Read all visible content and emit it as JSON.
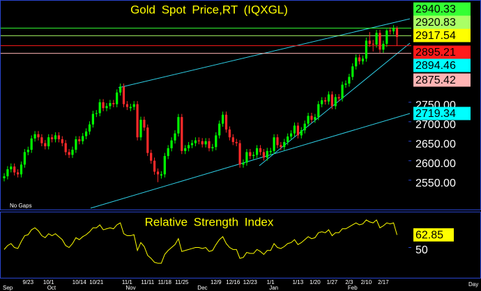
{
  "chart_data": [
    {
      "type": "candlestick",
      "title": "Gold Spot Price,RT (IQXGL)",
      "note": "No Gaps",
      "x_unit": "Day",
      "up_color": "#00ff00",
      "down_color": "#ff2a2a",
      "ylim": [
        2480,
        3007
      ],
      "yticks": [
        {
          "value": 2550,
          "label": "2550.00"
        },
        {
          "value": 2600,
          "label": "2600.00"
        },
        {
          "value": 2650,
          "label": "2650.00"
        },
        {
          "value": 2700,
          "label": "2700.00"
        },
        {
          "value": 2750,
          "label": "2750.00"
        }
      ],
      "price_tags": [
        {
          "value": 2940.33,
          "color": "#33ff33",
          "line": true
        },
        {
          "value": 2920.83,
          "color": "#aaff66",
          "line": true
        },
        {
          "value": 2917.54,
          "color": "#ffff00",
          "line": false
        },
        {
          "value": 2895.21,
          "color": "#ff1a1a",
          "line": true
        },
        {
          "value": 2894.46,
          "color": "#00ffff",
          "line": false
        },
        {
          "value": 2875.42,
          "color": "#ffb4b4",
          "line": true
        },
        {
          "value": 2719.34,
          "color": "#00ffff",
          "line": false
        }
      ],
      "xticks": [
        "9/23",
        "10/1",
        "10/14",
        "10/21",
        "11/1",
        "11/11",
        "11/18",
        "11/25",
        "12/9",
        "12/16",
        "12/23",
        "1/1",
        "1/13",
        "1/20",
        "1/27",
        "2/3",
        "2/10",
        "2/17"
      ],
      "month_labels": [
        {
          "date": "9/12",
          "label": "Sep"
        },
        {
          "date": "10/1",
          "label": "Oct"
        },
        {
          "date": "11/1",
          "label": "Nov"
        },
        {
          "date": "12/2",
          "label": "Dec"
        },
        {
          "date": "1/1",
          "label": "Jan"
        },
        {
          "date": "2/3",
          "label": "Feb"
        }
      ],
      "dates": [
        "9/12",
        "9/13",
        "9/16",
        "9/17",
        "9/18",
        "9/19",
        "9/20",
        "9/23",
        "9/24",
        "9/25",
        "9/26",
        "9/27",
        "9/30",
        "10/1",
        "10/2",
        "10/3",
        "10/4",
        "10/7",
        "10/8",
        "10/9",
        "10/10",
        "10/11",
        "10/14",
        "10/15",
        "10/16",
        "10/17",
        "10/18",
        "10/21",
        "10/22",
        "10/23",
        "10/24",
        "10/25",
        "10/28",
        "10/29",
        "10/30",
        "10/31",
        "11/1",
        "11/4",
        "11/5",
        "11/6",
        "11/7",
        "11/8",
        "11/11",
        "11/12",
        "11/13",
        "11/14",
        "11/15",
        "11/18",
        "11/19",
        "11/20",
        "11/21",
        "11/22",
        "11/25",
        "11/26",
        "11/27",
        "11/28",
        "11/29",
        "12/2",
        "12/3",
        "12/4",
        "12/5",
        "12/6",
        "12/9",
        "12/10",
        "12/11",
        "12/12",
        "12/13",
        "12/16",
        "12/17",
        "12/18",
        "12/19",
        "12/20",
        "12/23",
        "12/24",
        "12/26",
        "12/27",
        "12/30",
        "12/31",
        "1/1",
        "1/2",
        "1/3",
        "1/6",
        "1/7",
        "1/8",
        "1/9",
        "1/10",
        "1/13",
        "1/14",
        "1/15",
        "1/16",
        "1/17",
        "1/20",
        "1/21",
        "1/22",
        "1/23",
        "1/24",
        "1/27",
        "1/28",
        "1/29",
        "1/30",
        "1/31",
        "2/3",
        "2/4",
        "2/5",
        "2/6",
        "2/7",
        "2/10",
        "2/11",
        "2/12",
        "2/13",
        "2/14",
        "2/17",
        "2/18",
        "2/19",
        "2/20",
        "2/21"
      ],
      "candles": [
        [
          2555,
          2568,
          2547,
          2560
        ],
        [
          2560,
          2586,
          2552,
          2578
        ],
        [
          2578,
          2593,
          2570,
          2585
        ],
        [
          2585,
          2593,
          2562,
          2570
        ],
        [
          2570,
          2578,
          2557,
          2565
        ],
        [
          2565,
          2598,
          2557,
          2590
        ],
        [
          2590,
          2630,
          2582,
          2622
        ],
        [
          2622,
          2636,
          2614,
          2628
        ],
        [
          2628,
          2665,
          2620,
          2657
        ],
        [
          2657,
          2676,
          2649,
          2668
        ],
        [
          2668,
          2676,
          2652,
          2660
        ],
        [
          2660,
          2668,
          2637,
          2645
        ],
        [
          2645,
          2653,
          2629,
          2637
        ],
        [
          2637,
          2668,
          2629,
          2660
        ],
        [
          2660,
          2668,
          2647,
          2655
        ],
        [
          2655,
          2673,
          2647,
          2665
        ],
        [
          2665,
          2673,
          2647,
          2655
        ],
        [
          2655,
          2663,
          2637,
          2645
        ],
        [
          2645,
          2653,
          2614,
          2622
        ],
        [
          2622,
          2630,
          2607,
          2615
        ],
        [
          2615,
          2636,
          2607,
          2628
        ],
        [
          2628,
          2663,
          2620,
          2655
        ],
        [
          2655,
          2663,
          2642,
          2650
        ],
        [
          2650,
          2671,
          2642,
          2663
        ],
        [
          2663,
          2683,
          2655,
          2675
        ],
        [
          2675,
          2701,
          2667,
          2693
        ],
        [
          2693,
          2728,
          2685,
          2720
        ],
        [
          2720,
          2730,
          2712,
          2722
        ],
        [
          2722,
          2758,
          2714,
          2750
        ],
        [
          2750,
          2758,
          2727,
          2735
        ],
        [
          2735,
          2748,
          2727,
          2740
        ],
        [
          2740,
          2756,
          2732,
          2748
        ],
        [
          2748,
          2756,
          2737,
          2745
        ],
        [
          2745,
          2783,
          2737,
          2775
        ],
        [
          2775,
          2798,
          2767,
          2790
        ],
        [
          2790,
          2798,
          2737,
          2745
        ],
        [
          2745,
          2753,
          2730,
          2738
        ],
        [
          2735,
          2746,
          2727,
          2738
        ],
        [
          2738,
          2753,
          2730,
          2745
        ],
        [
          2745,
          2753,
          2652,
          2660
        ],
        [
          2660,
          2713,
          2652,
          2705
        ],
        [
          2705,
          2713,
          2677,
          2685
        ],
        [
          2685,
          2693,
          2612,
          2620
        ],
        [
          2620,
          2628,
          2592,
          2600
        ],
        [
          2600,
          2608,
          2564,
          2572
        ],
        [
          2572,
          2580,
          2545,
          2565
        ],
        [
          2562,
          2573,
          2554,
          2565
        ],
        [
          2565,
          2620,
          2557,
          2612
        ],
        [
          2612,
          2640,
          2604,
          2632
        ],
        [
          2632,
          2660,
          2624,
          2652
        ],
        [
          2652,
          2678,
          2644,
          2670
        ],
        [
          2670,
          2720,
          2662,
          2712
        ],
        [
          2712,
          2720,
          2617,
          2625
        ],
        [
          2625,
          2640,
          2617,
          2632
        ],
        [
          2632,
          2648,
          2624,
          2640
        ],
        [
          2640,
          2653,
          2632,
          2645
        ],
        [
          2645,
          2660,
          2637,
          2652
        ],
        [
          2652,
          2660,
          2642,
          2650
        ],
        [
          2650,
          2658,
          2634,
          2642
        ],
        [
          2642,
          2658,
          2634,
          2650
        ],
        [
          2650,
          2658,
          2624,
          2632
        ],
        [
          2632,
          2643,
          2624,
          2635
        ],
        [
          2635,
          2673,
          2627,
          2665
        ],
        [
          2665,
          2703,
          2657,
          2695
        ],
        [
          2695,
          2726,
          2687,
          2718
        ],
        [
          2718,
          2726,
          2672,
          2680
        ],
        [
          2680,
          2688,
          2652,
          2660
        ],
        [
          2660,
          2668,
          2640,
          2648
        ],
        [
          2648,
          2656,
          2637,
          2645
        ],
        [
          2645,
          2653,
          2582,
          2590
        ],
        [
          2590,
          2603,
          2582,
          2595
        ],
        [
          2595,
          2630,
          2587,
          2622
        ],
        [
          2622,
          2630,
          2604,
          2612
        ],
        [
          2612,
          2623,
          2604,
          2615
        ],
        [
          2615,
          2640,
          2607,
          2632
        ],
        [
          2632,
          2640,
          2614,
          2622
        ],
        [
          2622,
          2630,
          2600,
          2608
        ],
        [
          2608,
          2633,
          2600,
          2625
        ],
        [
          2622,
          2633,
          2614,
          2625
        ],
        [
          2625,
          2668,
          2617,
          2660
        ],
        [
          2660,
          2668,
          2632,
          2640
        ],
        [
          2640,
          2648,
          2627,
          2635
        ],
        [
          2635,
          2656,
          2627,
          2648
        ],
        [
          2648,
          2670,
          2640,
          2662
        ],
        [
          2662,
          2678,
          2654,
          2670
        ],
        [
          2670,
          2698,
          2662,
          2690
        ],
        [
          2690,
          2698,
          2657,
          2665
        ],
        [
          2665,
          2686,
          2657,
          2678
        ],
        [
          2678,
          2703,
          2670,
          2695
        ],
        [
          2695,
          2723,
          2687,
          2715
        ],
        [
          2715,
          2723,
          2697,
          2705
        ],
        [
          2705,
          2720,
          2697,
          2712
        ],
        [
          2712,
          2753,
          2704,
          2745
        ],
        [
          2745,
          2763,
          2737,
          2755
        ],
        [
          2755,
          2763,
          2744,
          2752
        ],
        [
          2752,
          2778,
          2744,
          2770
        ],
        [
          2770,
          2778,
          2732,
          2740
        ],
        [
          2740,
          2771,
          2732,
          2763
        ],
        [
          2763,
          2771,
          2752,
          2760
        ],
        [
          2760,
          2803,
          2752,
          2795
        ],
        [
          2795,
          2806,
          2787,
          2798
        ],
        [
          2798,
          2823,
          2790,
          2815
        ],
        [
          2815,
          2850,
          2807,
          2842
        ],
        [
          2842,
          2873,
          2834,
          2865
        ],
        [
          2865,
          2873,
          2847,
          2855
        ],
        [
          2855,
          2870,
          2847,
          2862
        ],
        [
          2862,
          2916,
          2854,
          2908
        ],
        [
          2908,
          2930,
          2892,
          2900
        ],
        [
          2900,
          2910,
          2880,
          2898
        ],
        [
          2898,
          2936,
          2890,
          2928
        ],
        [
          2928,
          2936,
          2877,
          2885
        ],
        [
          2885,
          2908,
          2877,
          2900
        ],
        [
          2900,
          2938,
          2892,
          2934
        ],
        [
          2934,
          2942,
          2924,
          2932
        ],
        [
          2932,
          2948,
          2924,
          2940
        ],
        [
          2940,
          2945,
          2895.21,
          2917.54
        ]
      ]
    },
    {
      "type": "line",
      "title": "Relative Strength Index",
      "color": "#ffff00",
      "ylim": [
        20,
        85
      ],
      "yticks": [
        50
      ],
      "last_tag": {
        "value": 62.85,
        "color": "#ffff00"
      },
      "values": [
        48,
        52,
        54,
        50,
        49,
        56,
        62,
        63,
        68,
        70,
        67,
        62,
        60,
        64,
        62,
        64,
        61,
        58,
        52,
        50,
        54,
        60,
        58,
        61,
        63,
        66,
        70,
        70,
        73,
        68,
        69,
        70,
        69,
        73,
        75,
        64,
        62,
        62,
        63,
        47,
        55,
        51,
        42,
        39,
        35,
        34,
        34,
        43,
        47,
        50,
        53,
        59,
        46,
        47,
        48,
        49,
        50,
        50,
        49,
        50,
        46,
        47,
        53,
        58,
        61,
        54,
        50,
        48,
        48,
        39,
        40,
        45,
        44,
        44,
        48,
        46,
        43,
        47,
        47,
        54,
        50,
        49,
        51,
        54,
        55,
        58,
        53,
        55,
        58,
        61,
        59,
        60,
        65,
        66,
        65,
        68,
        62,
        65,
        65,
        69,
        69,
        71,
        73,
        75,
        73,
        74,
        78,
        76,
        75,
        78,
        70,
        72,
        75,
        74,
        75,
        62.85
      ]
    }
  ]
}
